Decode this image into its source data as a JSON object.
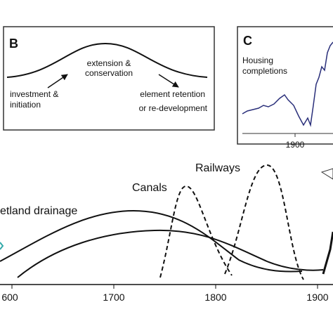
{
  "panel_b": {
    "letter": "B",
    "peak_label": [
      "extension &",
      "conservation"
    ],
    "left_label": [
      "investment &",
      "initiation"
    ],
    "right_label": [
      "element retention",
      "or re-development"
    ]
  },
  "panel_c": {
    "letter": "C",
    "label": [
      "Housing",
      "completions"
    ],
    "tick": "1900"
  },
  "main": {
    "labels": {
      "wetland": "etland drainage",
      "canals": "Canals",
      "railways": "Railways"
    },
    "ticks": [
      "600",
      "1700",
      "1800",
      "1900"
    ]
  }
}
